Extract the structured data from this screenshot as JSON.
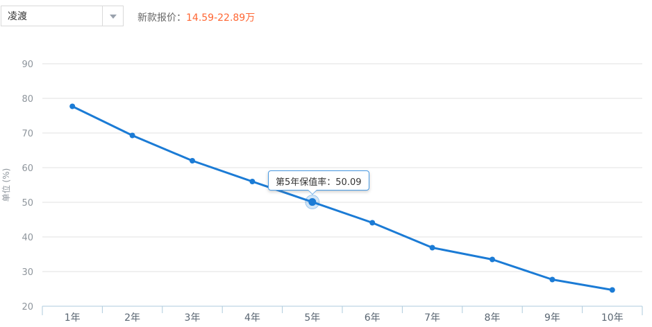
{
  "header": {
    "model_select": {
      "value": "凌渡"
    },
    "price_label": "新款报价：",
    "price_value": "14.59-22.89万"
  },
  "colors": {
    "line": "#1b7bd5",
    "grid": "#e0e0e0",
    "axis": "#aecbdd",
    "x_label": "#5a6672",
    "y_label": "#8e959c",
    "tooltip_border": "#4698e2",
    "price": "#ff6633"
  },
  "chart_data": {
    "type": "line",
    "title": "",
    "ylabel": "单位 (%)",
    "xlabel": "",
    "categories": [
      "1年",
      "2年",
      "3年",
      "4年",
      "5年",
      "6年",
      "7年",
      "8年",
      "9年",
      "10年"
    ],
    "values": [
      77.7,
      69.3,
      62.0,
      56.0,
      50.09,
      44.1,
      36.9,
      33.5,
      27.7,
      24.7
    ],
    "ylim": [
      20,
      90
    ],
    "ytick_step": 10,
    "grid": true,
    "legend_position": "none",
    "highlight_index": 4,
    "tooltip": {
      "text": "第5年保值率：50.09"
    }
  }
}
